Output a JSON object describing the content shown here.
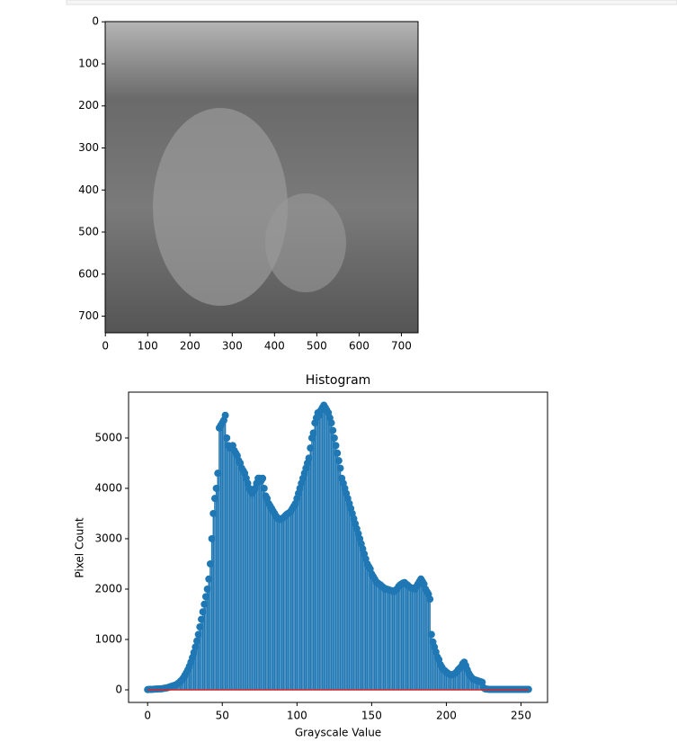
{
  "chart_data": [
    {
      "type": "image",
      "xlim": [
        -0.5,
        739.5
      ],
      "ylim": [
        739.5,
        -0.5
      ],
      "xticks": [
        0,
        100,
        200,
        300,
        400,
        500,
        600,
        700
      ],
      "yticks": [
        0,
        100,
        200,
        300,
        400,
        500,
        600,
        700
      ]
    },
    {
      "type": "stem",
      "title": "Histogram",
      "xlabel": "Grayscale Value",
      "ylabel": "Pixel Count",
      "color": "#1f77b4",
      "baseline_color": "#d62728",
      "xlim": [
        -12.75,
        267.75
      ],
      "ylim": [
        -250,
        5910
      ],
      "xticks": [
        0,
        50,
        100,
        150,
        200,
        250
      ],
      "yticks": [
        0,
        1000,
        2000,
        3000,
        4000,
        5000
      ],
      "values": [
        5,
        8,
        10,
        10,
        12,
        15,
        15,
        18,
        20,
        20,
        25,
        30,
        35,
        40,
        50,
        60,
        70,
        80,
        90,
        100,
        120,
        140,
        170,
        200,
        240,
        290,
        340,
        400,
        470,
        550,
        640,
        740,
        850,
        970,
        1100,
        1250,
        1400,
        1550,
        1700,
        1850,
        2000,
        2200,
        2500,
        3000,
        3500,
        3800,
        4000,
        4300,
        5200,
        5250,
        5300,
        5350,
        5450,
        5000,
        4850,
        4800,
        4800,
        4850,
        4750,
        4700,
        4650,
        4550,
        4500,
        4400,
        4350,
        4300,
        4200,
        4100,
        4000,
        3950,
        3900,
        3950,
        4000,
        4100,
        4200,
        4200,
        4150,
        4200,
        4000,
        3850,
        3800,
        3700,
        3650,
        3600,
        3550,
        3500,
        3450,
        3400,
        3400,
        3380,
        3400,
        3420,
        3450,
        3480,
        3500,
        3520,
        3550,
        3600,
        3650,
        3700,
        3800,
        3900,
        4000,
        4100,
        4200,
        4300,
        4400,
        4500,
        4600,
        4800,
        5000,
        5100,
        5300,
        5400,
        5500,
        5450,
        5550,
        5600,
        5650,
        5600,
        5550,
        5500,
        5400,
        5300,
        5150,
        5000,
        4850,
        4700,
        4550,
        4400,
        4200,
        4100,
        4000,
        3900,
        3800,
        3700,
        3600,
        3500,
        3400,
        3300,
        3200,
        3100,
        3000,
        2900,
        2800,
        2700,
        2600,
        2500,
        2450,
        2400,
        2300,
        2250,
        2200,
        2150,
        2120,
        2100,
        2080,
        2050,
        2030,
        2000,
        2000,
        1990,
        1980,
        1970,
        1960,
        1950,
        1980,
        2000,
        2050,
        2080,
        2100,
        2120,
        2130,
        2100,
        2080,
        2050,
        2030,
        2020,
        2010,
        2000,
        2050,
        2100,
        2150,
        2200,
        2150,
        2100,
        2000,
        1950,
        1900,
        1800,
        1100,
        950,
        850,
        750,
        650,
        600,
        500,
        450,
        400,
        380,
        350,
        330,
        310,
        300,
        300,
        310,
        330,
        360,
        400,
        430,
        460,
        520,
        550,
        480,
        400,
        330,
        280,
        240,
        210,
        200,
        190,
        180,
        170,
        160,
        150,
        40,
        20,
        15,
        12,
        10,
        10,
        10,
        10,
        10,
        10,
        10,
        10,
        10,
        10,
        10,
        10,
        10,
        10,
        10,
        10,
        10,
        10,
        10,
        10,
        10,
        10,
        10,
        10,
        10,
        10,
        10
      ]
    }
  ]
}
